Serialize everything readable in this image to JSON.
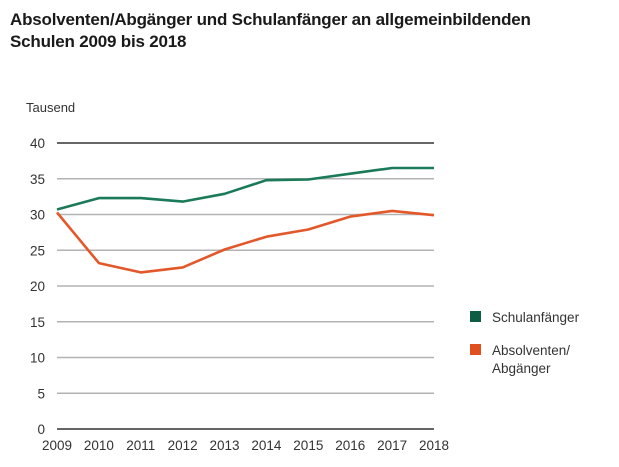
{
  "title_lines": [
    "Absolventen/Abgänger und Schulanfänger an allgemeinbildenden",
    "Schulen 2009 bis 2018"
  ],
  "chart_data": {
    "type": "line",
    "title": "Absolventen/Abgänger und Schulanfänger an allgemeinbildenden Schulen 2009 bis 2018",
    "ylabel": "Tausend",
    "xlabel": "",
    "x": [
      "2009",
      "2010",
      "2011",
      "2012",
      "2013",
      "2014",
      "2015",
      "2016",
      "2017",
      "2018"
    ],
    "ylim": [
      0,
      40
    ],
    "yticks": [
      0,
      5,
      10,
      15,
      20,
      25,
      30,
      35,
      40
    ],
    "grid": true,
    "legend_position": "right",
    "series": [
      {
        "name": "Schulanfänger",
        "legend_lines": [
          "Schulanfänger"
        ],
        "color": "#1b7a58",
        "swatch_color": "#0d5c44",
        "values": [
          30.7,
          32.3,
          32.3,
          31.8,
          32.9,
          34.8,
          34.9,
          35.7,
          36.5,
          36.5
        ]
      },
      {
        "name": "Absolventen/Abgänger",
        "legend_lines": [
          "Absolventen/",
          "Abgänger"
        ],
        "color": "#e2582a",
        "swatch_color": "#e0501e",
        "values": [
          30.3,
          23.2,
          21.9,
          22.6,
          25.1,
          26.9,
          27.9,
          29.7,
          30.5,
          29.9
        ]
      }
    ]
  }
}
